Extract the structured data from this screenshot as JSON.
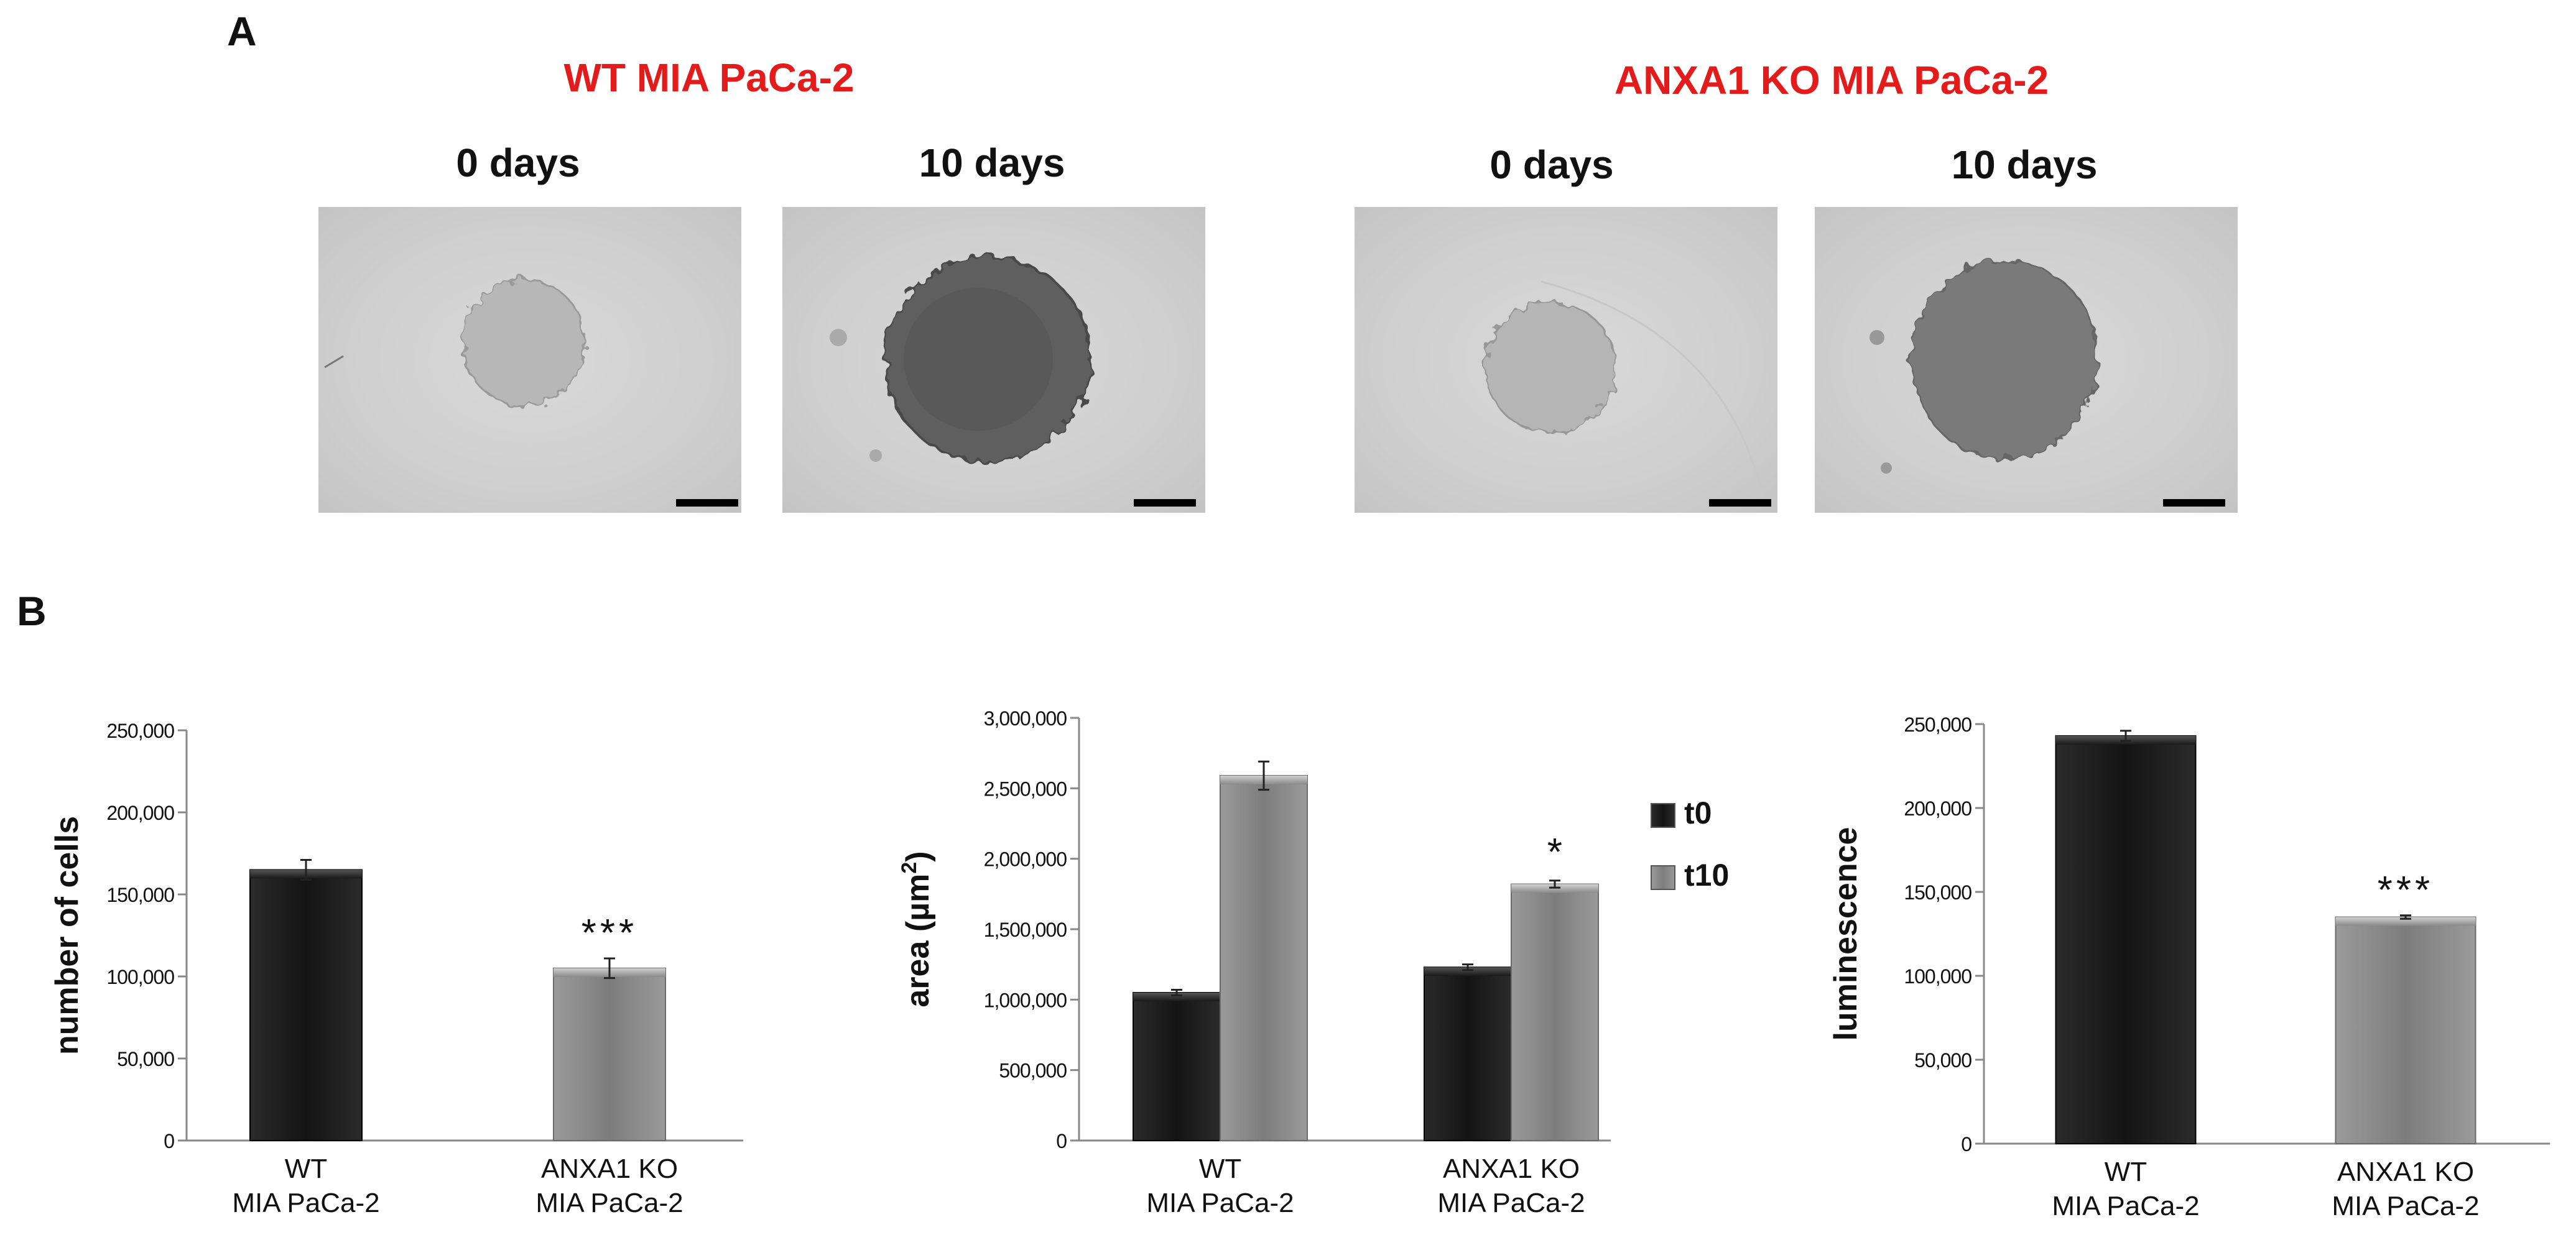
{
  "panel_a": {
    "letter": "A",
    "groups": [
      {
        "title": "WT MIA PaCa-2",
        "timepoints": [
          "0 days",
          "10 days"
        ]
      },
      {
        "title": "ANXA1 KO MIA PaCa-2",
        "timepoints": [
          "0 days",
          "10 days"
        ]
      }
    ]
  },
  "panel_b": {
    "letter": "B"
  },
  "colors": {
    "title_red": "#e31b1b",
    "dark_bar": "#1a1a1a",
    "grey_bar": "#8c8c8c"
  },
  "chart_data": [
    {
      "type": "bar",
      "categories": [
        [
          "WT",
          "MIA PaCa-2"
        ],
        [
          "ANXA1 KO",
          "MIA PaCa-2"
        ]
      ],
      "values": [
        165000,
        105000
      ],
      "errors": [
        6000,
        6000
      ],
      "bar_colors": [
        "dark",
        "grey"
      ],
      "ylabel": "number of cells",
      "ylim": [
        0,
        250000
      ],
      "yticks": [
        "0",
        "50,000",
        "100,000",
        "150,000",
        "200,000",
        "250,000"
      ],
      "annotations": [
        {
          "category_index": 1,
          "text": "***"
        }
      ]
    },
    {
      "type": "bar",
      "categories": [
        [
          "WT",
          "MIA PaCa-2"
        ],
        [
          "ANXA1 KO",
          "MIA PaCa-2"
        ]
      ],
      "series": [
        {
          "name": "t0",
          "values": [
            1050000,
            1230000
          ],
          "errors": [
            20000,
            20000
          ]
        },
        {
          "name": "t10",
          "values": [
            2590000,
            1820000
          ],
          "errors": [
            100000,
            25000
          ]
        }
      ],
      "ylabel_main": "area (µm",
      "ylabel_sup": "2",
      "ylabel_end": ")",
      "ylim": [
        0,
        3000000
      ],
      "yticks": [
        "0",
        "500,000",
        "1,000,000",
        "1,500,000",
        "2,000,000",
        "2,500,000",
        "3,000,000"
      ],
      "legend_position": "right",
      "annotations": [
        {
          "category_index": 1,
          "series_index": 1,
          "text": "*"
        }
      ]
    },
    {
      "type": "bar",
      "categories": [
        [
          "WT",
          "MIA PaCa-2"
        ],
        [
          "ANXA1 KO",
          "MIA PaCa-2"
        ]
      ],
      "values": [
        243000,
        135000
      ],
      "errors": [
        3000,
        1000
      ],
      "bar_colors": [
        "dark",
        "grey"
      ],
      "ylabel": "luminescence",
      "ylim": [
        0,
        250000
      ],
      "yticks": [
        "0",
        "50,000",
        "100,000",
        "150,000",
        "200,000",
        "250,000"
      ],
      "annotations": [
        {
          "category_index": 1,
          "text": "***"
        }
      ]
    }
  ]
}
